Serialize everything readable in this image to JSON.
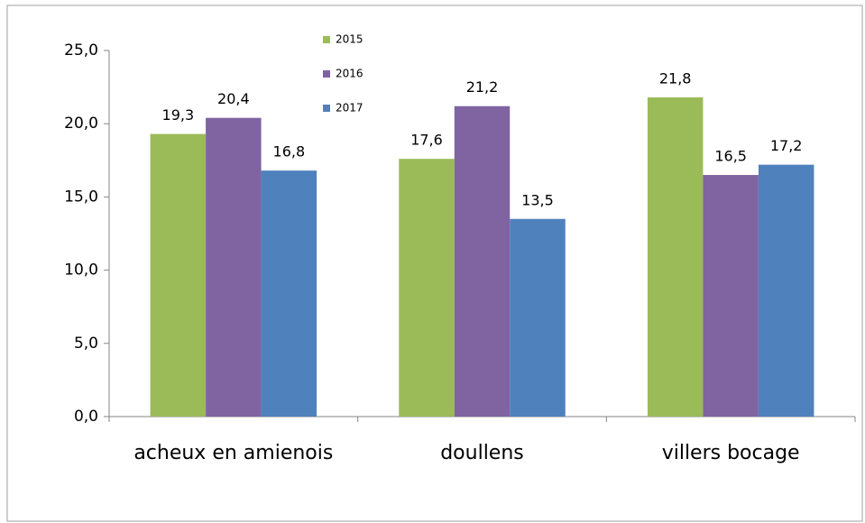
{
  "chart_data": {
    "type": "bar",
    "categories": [
      "acheux en amienois",
      "doullens",
      "villers bocage"
    ],
    "series": [
      {
        "name": "2015",
        "color": "#9bbb59",
        "values": [
          19.3,
          17.6,
          21.8
        ],
        "value_labels": [
          "19,3",
          "17,6",
          "21,8"
        ]
      },
      {
        "name": "2016",
        "color": "#8064a2",
        "values": [
          20.4,
          21.2,
          16.5
        ],
        "value_labels": [
          "20,4",
          "21,2",
          "16,5"
        ]
      },
      {
        "name": "2017",
        "color": "#4f81bd",
        "values": [
          16.8,
          13.5,
          17.2
        ],
        "value_labels": [
          "16,8",
          "13,5",
          "17,2"
        ]
      }
    ],
    "ylim": [
      0,
      25
    ],
    "yticks": [
      {
        "value": 0,
        "label": "0,0"
      },
      {
        "value": 5,
        "label": "5,0"
      },
      {
        "value": 10,
        "label": "10,0"
      },
      {
        "value": 15,
        "label": "15,0"
      },
      {
        "value": 20,
        "label": "20,0"
      },
      {
        "value": 25,
        "label": "25,0"
      }
    ],
    "legend": "top-center"
  }
}
